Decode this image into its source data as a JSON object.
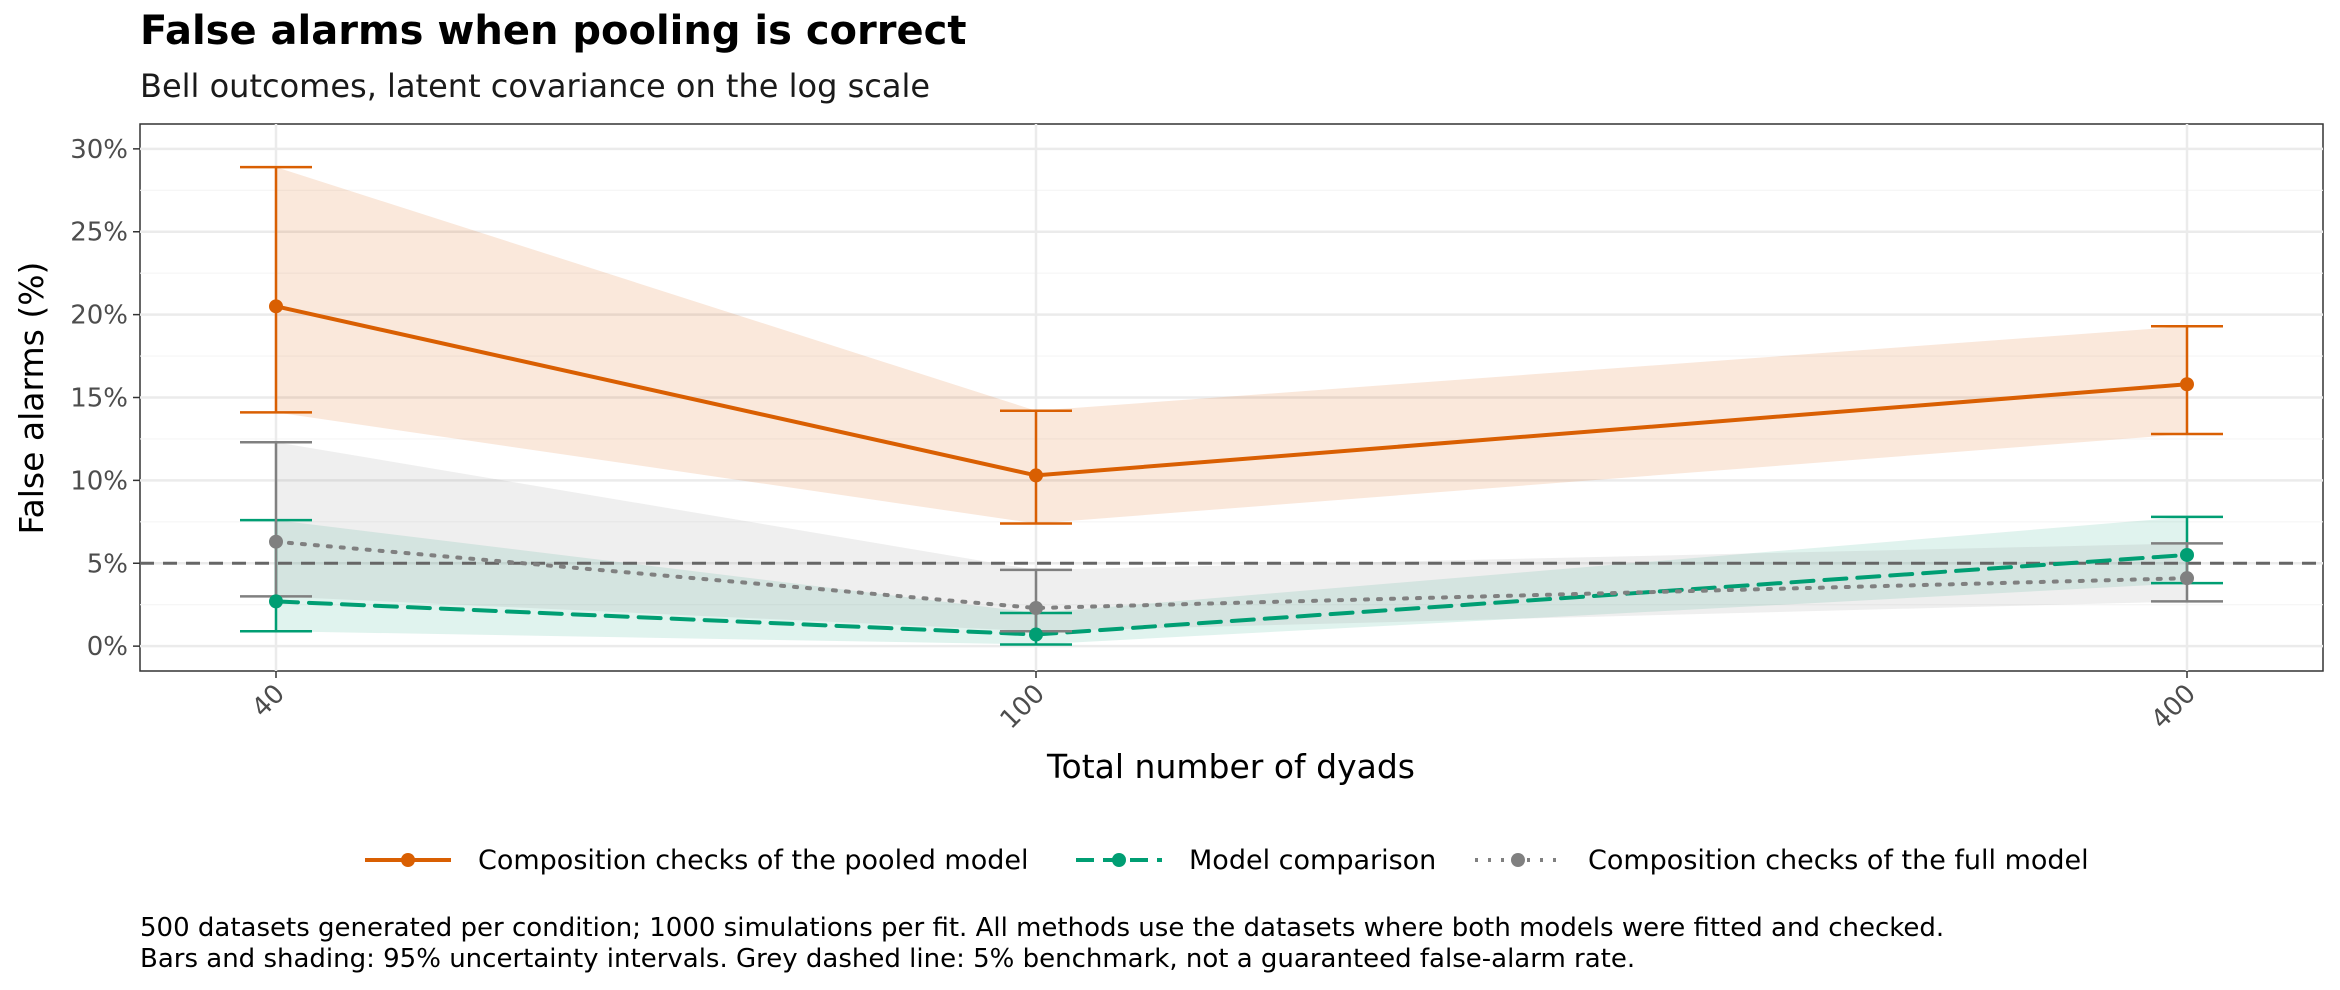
{
  "chart_data": {
    "type": "line",
    "title": "False alarms when pooling is correct",
    "subtitle": "Bell outcomes, latent covariance on the log scale",
    "xlabel": "Total number of dyads",
    "ylabel": "False alarms (%)",
    "categories": [
      "40",
      "100",
      "400"
    ],
    "y_ticks": [
      "0%",
      "5%",
      "10%",
      "15%",
      "20%",
      "25%",
      "30%"
    ],
    "ylim": [
      -1.5,
      31.5
    ],
    "grid": true,
    "legend_position": "bottom",
    "benchmark": {
      "value": 5,
      "color": "#666666"
    },
    "series": [
      {
        "name": "Composition checks of the pooled model",
        "color": "#D95F02",
        "line_style": "solid",
        "values": [
          20.5,
          10.3,
          15.8
        ],
        "lower": [
          14.1,
          7.4,
          12.8
        ],
        "upper": [
          28.9,
          14.2,
          19.3
        ],
        "band_lower": [
          14.1,
          7.4,
          12.8
        ],
        "band_upper": [
          28.9,
          14.2,
          19.3
        ]
      },
      {
        "name": "Model comparison",
        "color": "#009E73",
        "line_style": "dashed",
        "values": [
          2.7,
          0.7,
          5.5
        ],
        "lower": [
          0.9,
          0.1,
          3.8
        ],
        "upper": [
          7.6,
          2.0,
          7.8
        ],
        "band_lower": [
          0.9,
          0.1,
          3.8
        ],
        "band_upper": [
          7.6,
          2.0,
          7.8
        ]
      },
      {
        "name": "Composition checks of the full model",
        "color": "#808080",
        "line_style": "dotted",
        "values": [
          6.3,
          2.3,
          4.1
        ],
        "lower": [
          3.0,
          0.9,
          2.7
        ],
        "upper": [
          12.3,
          4.6,
          6.2
        ],
        "band_lower": [
          3.0,
          0.9,
          2.7
        ],
        "band_upper": [
          12.3,
          4.6,
          6.2
        ]
      }
    ]
  },
  "caption": {
    "line1": "500 datasets generated per condition; 1000 simulations per fit. All methods use the datasets where both models were fitted and checked.",
    "line2": "Bars and shading: 95% uncertainty intervals. Grey dashed line: 5% benchmark, not a guaranteed false-alarm rate."
  }
}
